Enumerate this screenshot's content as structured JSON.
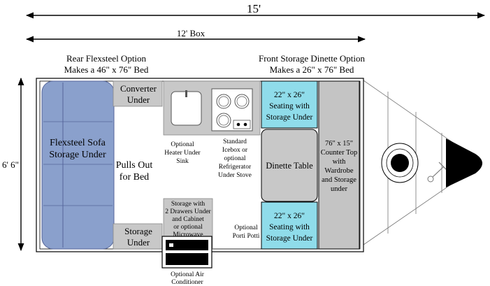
{
  "dimensions": {
    "overall_length": "15'",
    "box_length": "12' Box",
    "width": "6' 6\""
  },
  "options": {
    "rear": {
      "line1": "Rear Flexsteel Option",
      "line2": "Makes a 46\" x 76\" Bed"
    },
    "front": {
      "line1": "Front Storage Dinette Option",
      "line2": "Makes a 26\" x 76\" Bed"
    }
  },
  "areas": {
    "sofa": {
      "line1": "Flexsteel Sofa",
      "line2": "Storage Under"
    },
    "converter": {
      "line1": "Converter",
      "line2": "Under"
    },
    "pulls_out": {
      "line1": "Pulls Out",
      "line2": "for Bed"
    },
    "storage_under": {
      "line1": "Storage",
      "line2": "Under"
    },
    "heater": {
      "line1": "Optional",
      "line2": "Heater Under",
      "line3": "Sink"
    },
    "icebox": {
      "line1": "Standard",
      "line2": "Icebox or",
      "line3": "optional",
      "line4": "Refrigerator",
      "line5": "Under Stove"
    },
    "drawers": {
      "line1": "Storage with",
      "line2": "2 Drawers Under",
      "line3": "and Cabinet",
      "line4": "or optional",
      "line5": "Microwave"
    },
    "ac": {
      "line1": "Optional Air",
      "line2": "Conditioner"
    },
    "porti": {
      "line1": "Optional",
      "line2": "Porti Potti"
    },
    "seat_top": {
      "line1": "22\" x 26\"",
      "line2": "Seating with",
      "line3": "Storage Under"
    },
    "dinette": {
      "label": "Dinette Table"
    },
    "seat_bottom": {
      "line1": "22\" x 26\"",
      "line2": "Seating with",
      "line3": "Storage Under"
    },
    "counter": {
      "line1": "76\" x 15\"",
      "line2": "Counter Top",
      "line3": "with",
      "line4": "Wardrobe",
      "line5": "and Storage",
      "line6": "under"
    }
  },
  "colors": {
    "sofa": "#8aa0cc",
    "seat": "#8fdcea",
    "fixture": "#c8c8c8",
    "counter": "#c4c4c4"
  }
}
